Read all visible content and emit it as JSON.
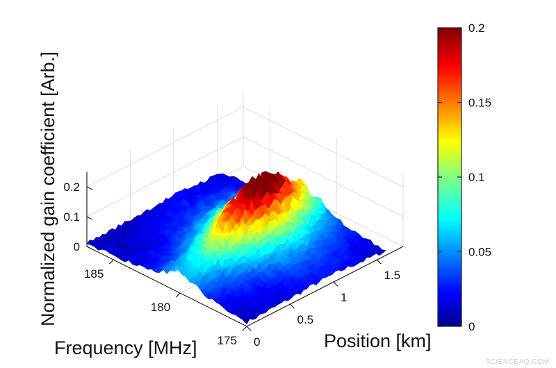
{
  "chart_data": {
    "type": "surface3d",
    "title": "",
    "zlabel": "Normalized gain coefficient [Arb.]",
    "xlabel": "Frequency [MHz]",
    "ylabel": "Position [km]",
    "x_ticks": [
      "185",
      "180",
      "175"
    ],
    "y_ticks": [
      "0",
      "0.5",
      "1",
      "1.5"
    ],
    "z_ticks": [
      "0",
      "0.1",
      "0.2"
    ],
    "xlim": [
      173,
      187
    ],
    "ylim": [
      0,
      1.8
    ],
    "zlim": [
      0,
      0.25
    ],
    "colorbar": {
      "min": 0,
      "max": 0.2,
      "ticks": [
        "0",
        "0.05",
        "0.1",
        "0.15",
        "0.2"
      ],
      "colormap": "jet"
    },
    "peak": {
      "frequency_mhz": 180.5,
      "position_km": 1.0,
      "gain": 0.21
    },
    "grid": true
  },
  "watermark": "SCIENCEAQ.COM"
}
